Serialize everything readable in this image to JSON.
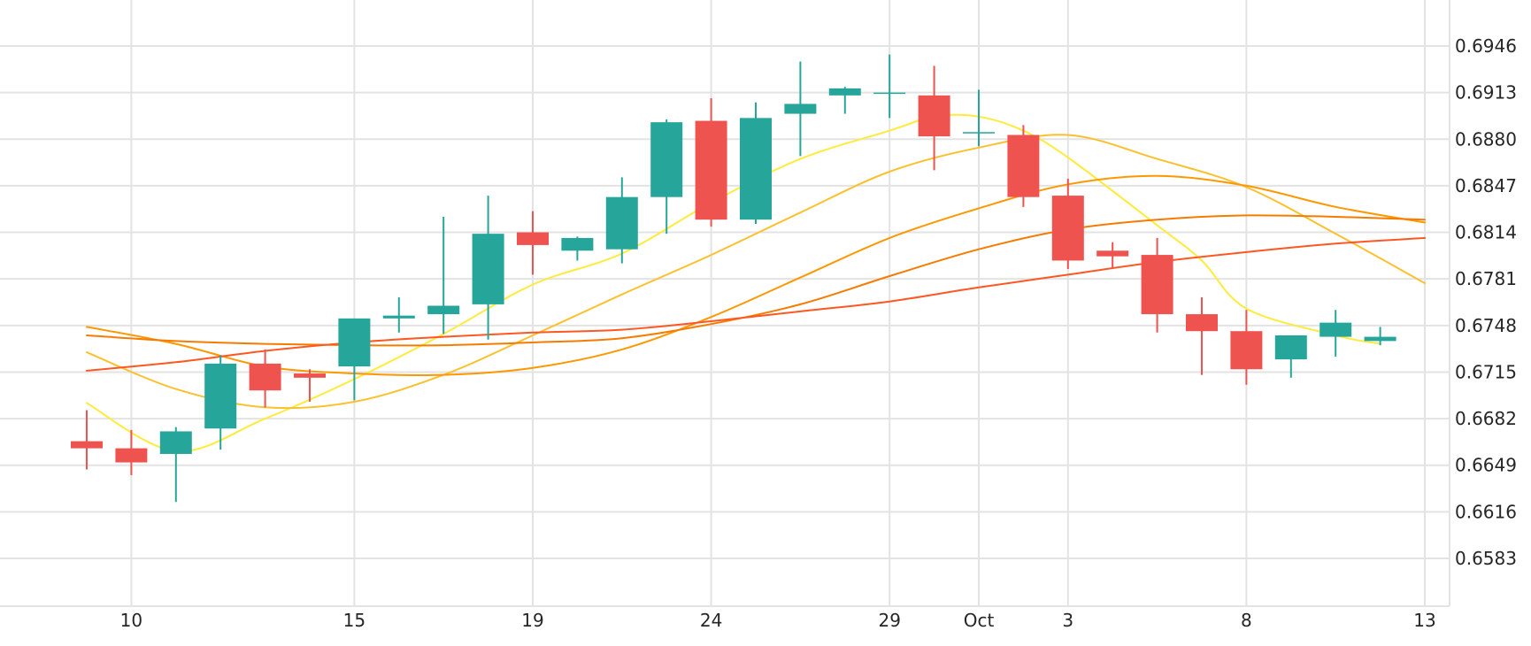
{
  "chart_data": {
    "type": "candlestick",
    "x_ticks": [
      {
        "i": 1,
        "label": "10"
      },
      {
        "i": 6,
        "label": "15"
      },
      {
        "i": 10,
        "label": "19"
      },
      {
        "i": 14,
        "label": "24"
      },
      {
        "i": 18,
        "label": "29"
      },
      {
        "i": 20,
        "label": "Oct"
      },
      {
        "i": 22,
        "label": "3"
      },
      {
        "i": 26,
        "label": "8"
      },
      {
        "i": 30,
        "label": "13"
      }
    ],
    "y_ticks": [
      "0.6946",
      "0.6913",
      "0.6880",
      "0.6847",
      "0.6814",
      "0.6781",
      "0.6748",
      "0.6715",
      "0.6682",
      "0.6649",
      "0.6616",
      "0.6583"
    ],
    "ylim": [
      0.655,
      0.6975
    ],
    "up_color": "#26a69a",
    "down_color": "#ef5350",
    "candles": [
      {
        "i": 0,
        "open": 0.6666,
        "high": 0.6688,
        "low": 0.6646,
        "close": 0.6661
      },
      {
        "i": 1,
        "open": 0.6661,
        "high": 0.6674,
        "low": 0.6642,
        "close": 0.6651
      },
      {
        "i": 2,
        "open": 0.6657,
        "high": 0.6676,
        "low": 0.6623,
        "close": 0.6673
      },
      {
        "i": 3,
        "open": 0.6675,
        "high": 0.6727,
        "low": 0.666,
        "close": 0.6721
      },
      {
        "i": 4,
        "open": 0.6721,
        "high": 0.6731,
        "low": 0.669,
        "close": 0.6702
      },
      {
        "i": 5,
        "open": 0.6714,
        "high": 0.6717,
        "low": 0.6694,
        "close": 0.6711
      },
      {
        "i": 6,
        "open": 0.6719,
        "high": 0.6752,
        "low": 0.6695,
        "close": 0.6753
      },
      {
        "i": 7,
        "open": 0.6753,
        "high": 0.6768,
        "low": 0.6743,
        "close": 0.6755
      },
      {
        "i": 8,
        "open": 0.6756,
        "high": 0.6825,
        "low": 0.6742,
        "close": 0.6762
      },
      {
        "i": 9,
        "open": 0.6763,
        "high": 0.684,
        "low": 0.6738,
        "close": 0.6813
      },
      {
        "i": 10,
        "open": 0.6814,
        "high": 0.6829,
        "low": 0.6784,
        "close": 0.6805
      },
      {
        "i": 11,
        "open": 0.6801,
        "high": 0.6811,
        "low": 0.6794,
        "close": 0.681
      },
      {
        "i": 12,
        "open": 0.6802,
        "high": 0.6853,
        "low": 0.6792,
        "close": 0.6839
      },
      {
        "i": 13,
        "open": 0.6839,
        "high": 0.6894,
        "low": 0.6813,
        "close": 0.6892
      },
      {
        "i": 14,
        "open": 0.6893,
        "high": 0.6909,
        "low": 0.6818,
        "close": 0.6823
      },
      {
        "i": 15,
        "open": 0.6823,
        "high": 0.6906,
        "low": 0.682,
        "close": 0.6895
      },
      {
        "i": 16,
        "open": 0.6898,
        "high": 0.6935,
        "low": 0.6868,
        "close": 0.6905
      },
      {
        "i": 17,
        "open": 0.6911,
        "high": 0.6917,
        "low": 0.6898,
        "close": 0.6916
      },
      {
        "i": 18,
        "open": 0.6913,
        "high": 0.694,
        "low": 0.6895,
        "close": 0.6913
      },
      {
        "i": 19,
        "open": 0.6911,
        "high": 0.6932,
        "low": 0.6858,
        "close": 0.6882
      },
      {
        "i": 20,
        "open": 0.6885,
        "high": 0.6915,
        "low": 0.6875,
        "close": 0.6885
      },
      {
        "i": 21,
        "open": 0.6883,
        "high": 0.689,
        "low": 0.6832,
        "close": 0.6839
      },
      {
        "i": 22,
        "open": 0.684,
        "high": 0.6852,
        "low": 0.6788,
        "close": 0.6794
      },
      {
        "i": 23,
        "open": 0.6801,
        "high": 0.6807,
        "low": 0.6788,
        "close": 0.6797
      },
      {
        "i": 24,
        "open": 0.6798,
        "high": 0.681,
        "low": 0.6743,
        "close": 0.6756
      },
      {
        "i": 25,
        "open": 0.6756,
        "high": 0.6768,
        "low": 0.6713,
        "close": 0.6744
      },
      {
        "i": 26,
        "open": 0.6744,
        "high": 0.6759,
        "low": 0.6706,
        "close": 0.6717
      },
      {
        "i": 27,
        "open": 0.6724,
        "high": 0.6741,
        "low": 0.6711,
        "close": 0.6741
      },
      {
        "i": 28,
        "open": 0.674,
        "high": 0.6759,
        "low": 0.6726,
        "close": 0.675
      },
      {
        "i": 29,
        "open": 0.6737,
        "high": 0.6747,
        "low": 0.6734,
        "close": 0.674
      }
    ],
    "series": [
      {
        "color": "#ffeb3b",
        "x": [
          0,
          2,
          4,
          6,
          8,
          10,
          12,
          14,
          16,
          18,
          19,
          20,
          21,
          22,
          24,
          25,
          26,
          28,
          29
        ],
        "y": [
          0.6693,
          0.6659,
          0.6682,
          0.671,
          0.6742,
          0.6777,
          0.6799,
          0.6835,
          0.6866,
          0.6886,
          0.6896,
          0.6896,
          0.6886,
          0.6867,
          0.6819,
          0.6794,
          0.676,
          0.6741,
          0.6735
        ]
      },
      {
        "color": "#fbc02d",
        "x": [
          0,
          2,
          4,
          6,
          8,
          10,
          12,
          14,
          16,
          18,
          20,
          22,
          24,
          26,
          28,
          30
        ],
        "y": [
          0.6729,
          0.6703,
          0.669,
          0.6694,
          0.6713,
          0.6741,
          0.677,
          0.6798,
          0.6828,
          0.6857,
          0.6874,
          0.6883,
          0.6866,
          0.6846,
          0.6813,
          0.6778
        ]
      },
      {
        "color": "#ff9800",
        "x": [
          0,
          2,
          4,
          6,
          8,
          10,
          12,
          14,
          16,
          18,
          20,
          22,
          24,
          26,
          28,
          30
        ],
        "y": [
          0.6747,
          0.6735,
          0.6719,
          0.6714,
          0.6713,
          0.6718,
          0.6731,
          0.6754,
          0.6782,
          0.681,
          0.6831,
          0.6848,
          0.6854,
          0.6847,
          0.6832,
          0.6821
        ]
      },
      {
        "color": "#f57c00",
        "x": [
          0,
          2,
          4,
          6,
          8,
          10,
          12,
          14,
          16,
          18,
          20,
          22,
          24,
          26,
          28,
          30
        ],
        "y": [
          0.6741,
          0.6737,
          0.6735,
          0.6734,
          0.6734,
          0.6736,
          0.6739,
          0.6749,
          0.6763,
          0.6783,
          0.6802,
          0.6816,
          0.6823,
          0.6826,
          0.6825,
          0.6823
        ]
      },
      {
        "color": "#ff5722",
        "x": [
          0,
          2,
          4,
          6,
          8,
          10,
          12,
          14,
          16,
          18,
          20,
          22,
          24,
          26,
          28,
          30
        ],
        "y": [
          0.6716,
          0.6722,
          0.673,
          0.6736,
          0.674,
          0.6743,
          0.6745,
          0.6751,
          0.6758,
          0.6765,
          0.6775,
          0.6784,
          0.6793,
          0.68,
          0.6806,
          0.681
        ]
      }
    ]
  }
}
